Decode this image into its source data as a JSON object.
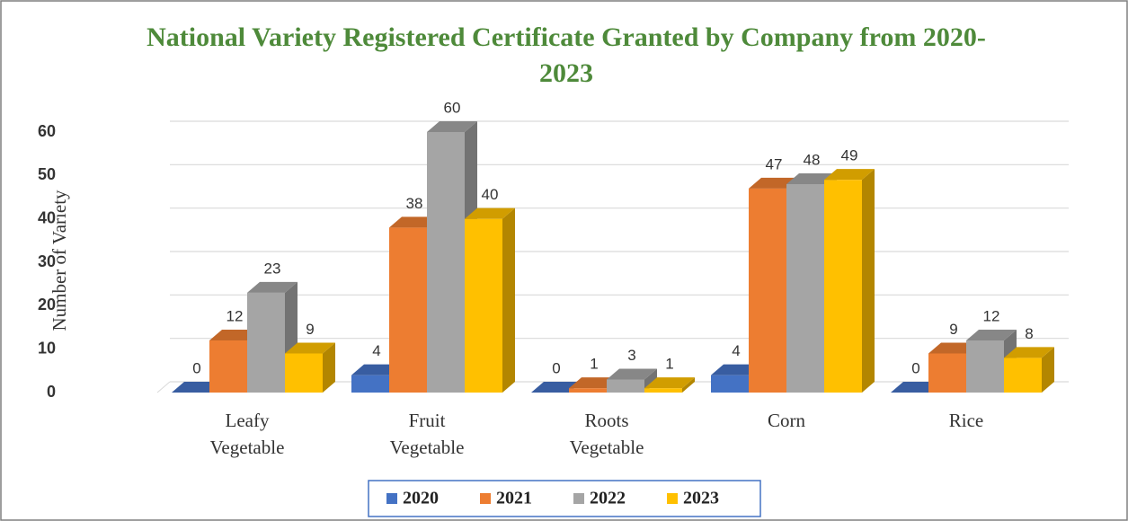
{
  "chart_data": {
    "type": "bar3d",
    "title": "National Variety Registered Certificate Granted by Company from 2020-2023",
    "ylabel": "Number of Variety",
    "categories": [
      "Leafy Vegetable",
      "Fruit Vegetable",
      "Roots Vegetable",
      "Corn",
      "Rice"
    ],
    "series": [
      {
        "name": "2020",
        "color": "#4472c4",
        "values": [
          0,
          4,
          0,
          4,
          0
        ]
      },
      {
        "name": "2021",
        "color": "#ed7d31",
        "values": [
          12,
          38,
          1,
          47,
          9
        ]
      },
      {
        "name": "2022",
        "color": "#a5a5a5",
        "values": [
          23,
          60,
          3,
          48,
          12
        ]
      },
      {
        "name": "2023",
        "color": "#ffc000",
        "values": [
          9,
          40,
          1,
          49,
          8
        ]
      }
    ],
    "ylim": [
      0,
      60
    ],
    "yticks": [
      0,
      10,
      20,
      30,
      40,
      50,
      60
    ],
    "grid": true,
    "legend": "bottom"
  }
}
